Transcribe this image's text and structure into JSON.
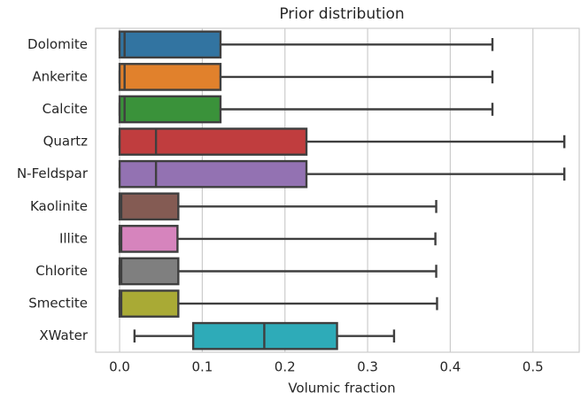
{
  "chart_data": {
    "type": "boxplot",
    "title": "Prior distribution",
    "x_label": "Volumic fraction",
    "categories": [
      "Dolomite",
      "Ankerite",
      "Calcite",
      "Quartz",
      "N-Feldspar",
      "Kaolinite",
      "Illite",
      "Chlorite",
      "Smectite",
      "XWater"
    ],
    "colors": [
      "#3274a1",
      "#e1812c",
      "#3a923a",
      "#c03d3e",
      "#9372b2",
      "#845b53",
      "#d684bd",
      "#7f7f7f",
      "#a9aa35",
      "#2eabb8"
    ],
    "min": [
      0,
      0,
      0,
      0,
      0,
      0,
      0,
      0,
      0,
      0.018
    ],
    "q1": [
      0,
      0,
      0,
      0,
      0,
      0,
      0,
      0,
      0,
      0.089
    ],
    "median": [
      0.006,
      0.006,
      0.006,
      0.044,
      0.044,
      0.002,
      0.002,
      0.002,
      0.002,
      0.175
    ],
    "q3": [
      0.122,
      0.122,
      0.122,
      0.226,
      0.226,
      0.071,
      0.07,
      0.071,
      0.071,
      0.263
    ],
    "max": [
      0.451,
      0.451,
      0.451,
      0.538,
      0.538,
      0.383,
      0.382,
      0.383,
      0.384,
      0.332
    ],
    "xlim": [
      -0.029,
      0.556
    ],
    "xticks": [
      {
        "value": 0,
        "label": "0.0"
      },
      0.1,
      0.2,
      0.3,
      0.4,
      0.5
    ],
    "grid": true
  }
}
